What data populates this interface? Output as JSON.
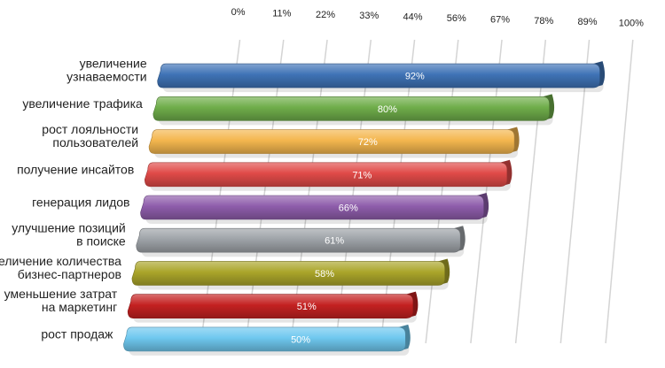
{
  "chart_data": {
    "type": "bar",
    "orientation": "horizontal",
    "style": "3d-perspective",
    "title": "",
    "xlabel": "",
    "ylabel": "",
    "xlim": [
      0,
      100
    ],
    "grid": true,
    "tick_labels": [
      "0%",
      "11%",
      "22%",
      "33%",
      "44%",
      "56%",
      "67%",
      "78%",
      "89%",
      "100%"
    ],
    "categories": [
      [
        "увеличение",
        "узнаваемости"
      ],
      [
        "увеличение трафика"
      ],
      [
        "рост лояльности",
        "пользователей"
      ],
      [
        "получение инсайтов"
      ],
      [
        "генерация лидов"
      ],
      [
        "улучшение позиций",
        "в поиске"
      ],
      [
        "увеличение количества",
        "бизнес-партнеров"
      ],
      [
        "уменьшение затрат",
        "на маркетинг"
      ],
      [
        "рост продаж"
      ]
    ],
    "values": [
      92,
      80,
      72,
      71,
      66,
      61,
      58,
      51,
      50
    ],
    "value_labels": [
      "92%",
      "80%",
      "72%",
      "71%",
      "66%",
      "61%",
      "58%",
      "51%",
      "50%"
    ],
    "colors": [
      "#3f73b6",
      "#6fad4a",
      "#f4b64e",
      "#e04a48",
      "#8e5dab",
      "#9ea3a8",
      "#aaa52a",
      "#c42121",
      "#6fc8ef"
    ],
    "legend": "none"
  }
}
